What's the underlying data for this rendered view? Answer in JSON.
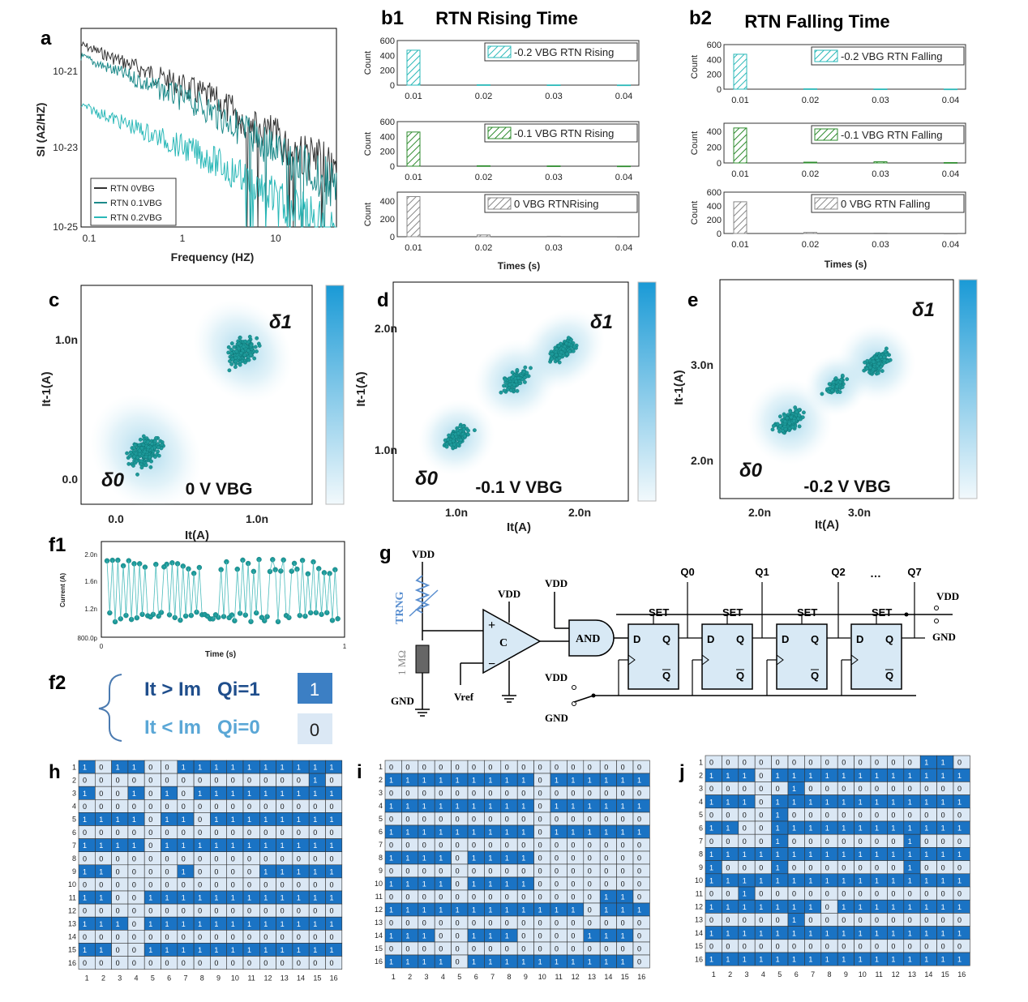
{
  "panels": {
    "a": "a",
    "b1": "b1",
    "b2": "b2",
    "c": "c",
    "d": "d",
    "e": "e",
    "f1": "f1",
    "f2": "f2",
    "g": "g",
    "h": "h",
    "i": "i",
    "j": "j"
  },
  "titles": {
    "b1": "RTN Rising Time",
    "b2": "RTN Falling Time"
  },
  "colors": {
    "fill_blue": "#1a73c4",
    "fill_light": "#dbe8f5",
    "teal": "#2ab8b8",
    "dark": "#333333",
    "mid_teal": "#1d8a8a",
    "green": "#2e8b2e",
    "gray": "#888888"
  },
  "psd": {
    "ylabel": "SI (A2/HZ)",
    "xlabel": "Frequency (HZ)",
    "y_ticks": [
      "10-21",
      "10-23",
      "10-25"
    ],
    "x_ticks": [
      "0.1",
      "1",
      "10"
    ],
    "legend": [
      "RTN 0VBG",
      "RTN 0.1VBG",
      "RTN 0.2VBG"
    ]
  },
  "hist": {
    "xticks": [
      "0.01",
      "0.02",
      "0.03",
      "0.04"
    ],
    "ylabel": "Count",
    "xlabel": "Times (s)",
    "b1": [
      {
        "label": "-0.2 VBG RTN Rising",
        "color": "teal",
        "yticks": [
          "0",
          "200",
          "400",
          "600"
        ],
        "ymax": 600,
        "values": [
          470,
          5,
          3,
          2
        ]
      },
      {
        "label": "-0.1 VBG RTN Rising",
        "color": "green",
        "yticks": [
          "0",
          "200",
          "400",
          "600"
        ],
        "ymax": 600,
        "values": [
          460,
          6,
          4,
          2
        ]
      },
      {
        "label": "0 VBG RTNRising",
        "color": "gray",
        "yticks": [
          "0",
          "200",
          "400"
        ],
        "ymax": 500,
        "values": [
          450,
          20,
          5,
          3
        ]
      }
    ],
    "b2": [
      {
        "label": "-0.2 VBG RTN Falling",
        "color": "teal",
        "yticks": [
          "0",
          "200",
          "400",
          "600"
        ],
        "ymax": 600,
        "values": [
          470,
          5,
          3,
          2
        ]
      },
      {
        "label": "-0.1 VBG RTN Falling",
        "color": "green",
        "yticks": [
          "0",
          "200",
          "400"
        ],
        "ymax": 500,
        "values": [
          440,
          10,
          15,
          5
        ]
      },
      {
        "label": "0 VBG RTN Falling",
        "color": "gray",
        "yticks": [
          "0",
          "200",
          "400",
          "600"
        ],
        "ymax": 600,
        "values": [
          460,
          15,
          5,
          3
        ]
      }
    ]
  },
  "scatter": {
    "c": {
      "xticks": [
        "0.0",
        "1.0n"
      ],
      "yticks": [
        "1.0n",
        "0.0"
      ],
      "xlabel": "It(A)",
      "ylabel": "It-1(A)",
      "label": "0 V VBG"
    },
    "d": {
      "xticks": [
        "1.0n",
        "2.0n"
      ],
      "yticks": [
        "2.0n",
        "1.0n"
      ],
      "xlabel": "It(A)",
      "ylabel": "It-1(A)",
      "label": "-0.1 V VBG"
    },
    "e": {
      "xticks": [
        "2.0n",
        "3.0n"
      ],
      "yticks": [
        "3.0n",
        "2.0n"
      ],
      "xlabel": "It(A)",
      "ylabel": "It-1(A)",
      "label": "-0.2 V VBG"
    },
    "delta0": "δ0",
    "delta1": "δ1"
  },
  "trace": {
    "yticks": [
      "2.0n",
      "1.6n",
      "1.2n",
      "800.0p"
    ],
    "xticks": [
      "0",
      "1"
    ],
    "ylabel": "Current (A)",
    "xlabel": "Time (s)"
  },
  "rule": {
    "line1": "It > Im   Qi=1",
    "line2": "It < Im   Qi=0",
    "box1": "1",
    "box2": "0"
  },
  "circuit": {
    "vdd": "VDD",
    "gnd": "GND",
    "trng": "TRNG",
    "res": "1 MΩ",
    "comp": "C",
    "vref": "Vref",
    "and": "AND",
    "set": "SET",
    "d": "D",
    "q": "Q",
    "qbar": "Q",
    "outputs": [
      "Q0",
      "Q1",
      "Q2",
      "…",
      "Q7"
    ],
    "plus": "+",
    "minus": "−"
  },
  "matrices": {
    "h": [
      "1011001111111111",
      "0000000000000010",
      "1001010111111111",
      "0000000000000000",
      "1111011011111111",
      "0000000000000000",
      "1111011111111111",
      "0000000000000000",
      "1100001000011111",
      "0000000000000000",
      "1100111111111111",
      "0000000000000000",
      "1110111111111111",
      "0000000000000000",
      "1100111111111111",
      "0000000000000000"
    ],
    "i": [
      "0000000000000000",
      "1111111110111111",
      "0000000000000000",
      "1111111110111111",
      "0000000000000000",
      "1111111110111111",
      "0000000000000000",
      "1111011110000000",
      "0000000000000000",
      "1111011110000000",
      "0000000000000110",
      "1111111111110111",
      "0000000000000000",
      "1110011100001110",
      "0000000000000000",
      "1111011111111110"
    ],
    "j": [
      "0000000000000110",
      "1110111111111111",
      "0000010000000000",
      "1110111111111111",
      "0000100000000000",
      "1100111111111111",
      "0000100000001000",
      "1111111111111111",
      "1000100000001000",
      "1111111111111111",
      "0010000000000000",
      "1111111011111111",
      "0000010000000000",
      "1111111111111111",
      "0000000000000000",
      "1111111111111111"
    ],
    "cols": [
      "1",
      "2",
      "3",
      "4",
      "5",
      "6",
      "7",
      "8",
      "9",
      "10",
      "11",
      "12",
      "13",
      "14",
      "15",
      "16"
    ],
    "rows": [
      "1",
      "2",
      "3",
      "4",
      "5",
      "6",
      "7",
      "8",
      "9",
      "10",
      "11",
      "12",
      "13",
      "14",
      "15",
      "16"
    ]
  }
}
